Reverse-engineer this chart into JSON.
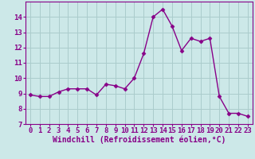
{
  "x": [
    0,
    1,
    2,
    3,
    4,
    5,
    6,
    7,
    8,
    9,
    10,
    11,
    12,
    13,
    14,
    15,
    16,
    17,
    18,
    19,
    20,
    21,
    22,
    23
  ],
  "y": [
    8.9,
    8.8,
    8.8,
    9.1,
    9.3,
    9.3,
    9.3,
    8.9,
    9.6,
    9.5,
    9.3,
    10.0,
    11.6,
    14.0,
    14.5,
    13.4,
    11.8,
    12.6,
    12.4,
    12.6,
    8.8,
    7.7,
    7.7,
    7.5
  ],
  "line_color": "#880088",
  "marker": "D",
  "marker_size": 2.5,
  "bg_color": "#cce8e8",
  "grid_color": "#aacccc",
  "xlabel": "Windchill (Refroidissement éolien,°C)",
  "xlabel_color": "#880088",
  "tick_color": "#880088",
  "spine_color": "#880088",
  "ylim": [
    7,
    15
  ],
  "xlim": [
    -0.5,
    23.5
  ],
  "yticks": [
    7,
    8,
    9,
    10,
    11,
    12,
    13,
    14
  ],
  "xticks": [
    0,
    1,
    2,
    3,
    4,
    5,
    6,
    7,
    8,
    9,
    10,
    11,
    12,
    13,
    14,
    15,
    16,
    17,
    18,
    19,
    20,
    21,
    22,
    23
  ],
  "tick_fontsize": 6.5,
  "xlabel_fontsize": 7.0,
  "linewidth": 1.0
}
